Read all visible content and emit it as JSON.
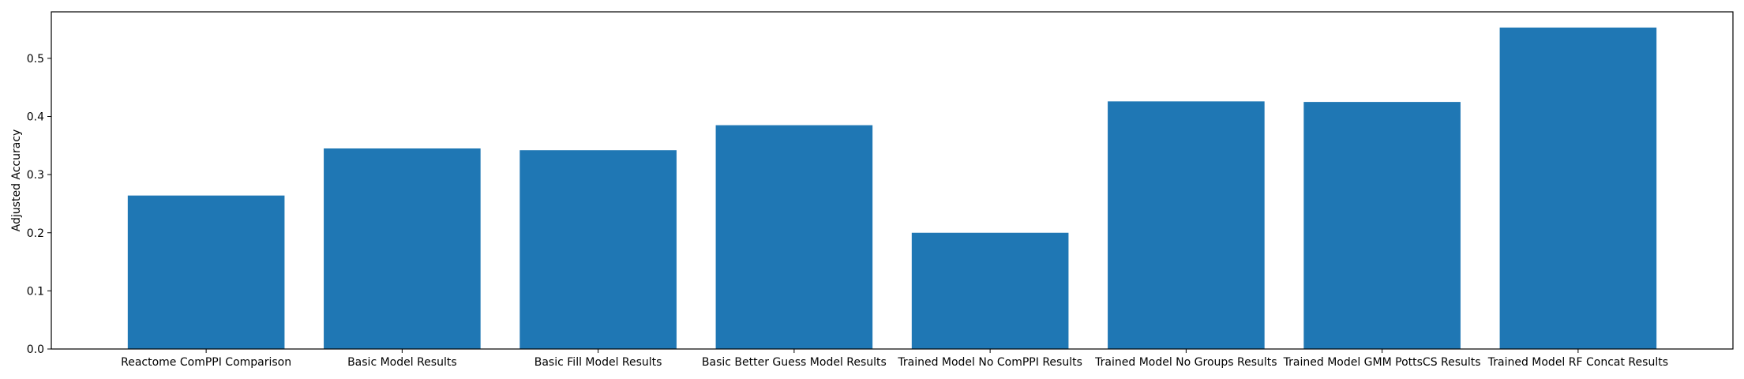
{
  "chart_data": {
    "type": "bar",
    "title": "",
    "xlabel": "",
    "ylabel": "Adjusted Accuracy",
    "categories": [
      "Reactome ComPPI Comparison",
      "Basic Model Results",
      "Basic Fill Model Results",
      "Basic Better Guess Model Results",
      "Trained Model No ComPPI Results",
      "Trained Model No Groups Results",
      "Trained Model GMM PottsCS Results",
      "Trained Model RF Concat Results"
    ],
    "values": [
      0.264,
      0.345,
      0.342,
      0.385,
      0.2,
      0.426,
      0.425,
      0.553
    ],
    "ylim": [
      0,
      0.58
    ],
    "yticks": [
      0.0,
      0.1,
      0.2,
      0.3,
      0.4,
      0.5
    ],
    "ytick_labels": [
      "0.0",
      "0.1",
      "0.2",
      "0.3",
      "0.4",
      "0.5"
    ],
    "grid": false,
    "legend": "none",
    "bar_color": "#1f77b4"
  }
}
